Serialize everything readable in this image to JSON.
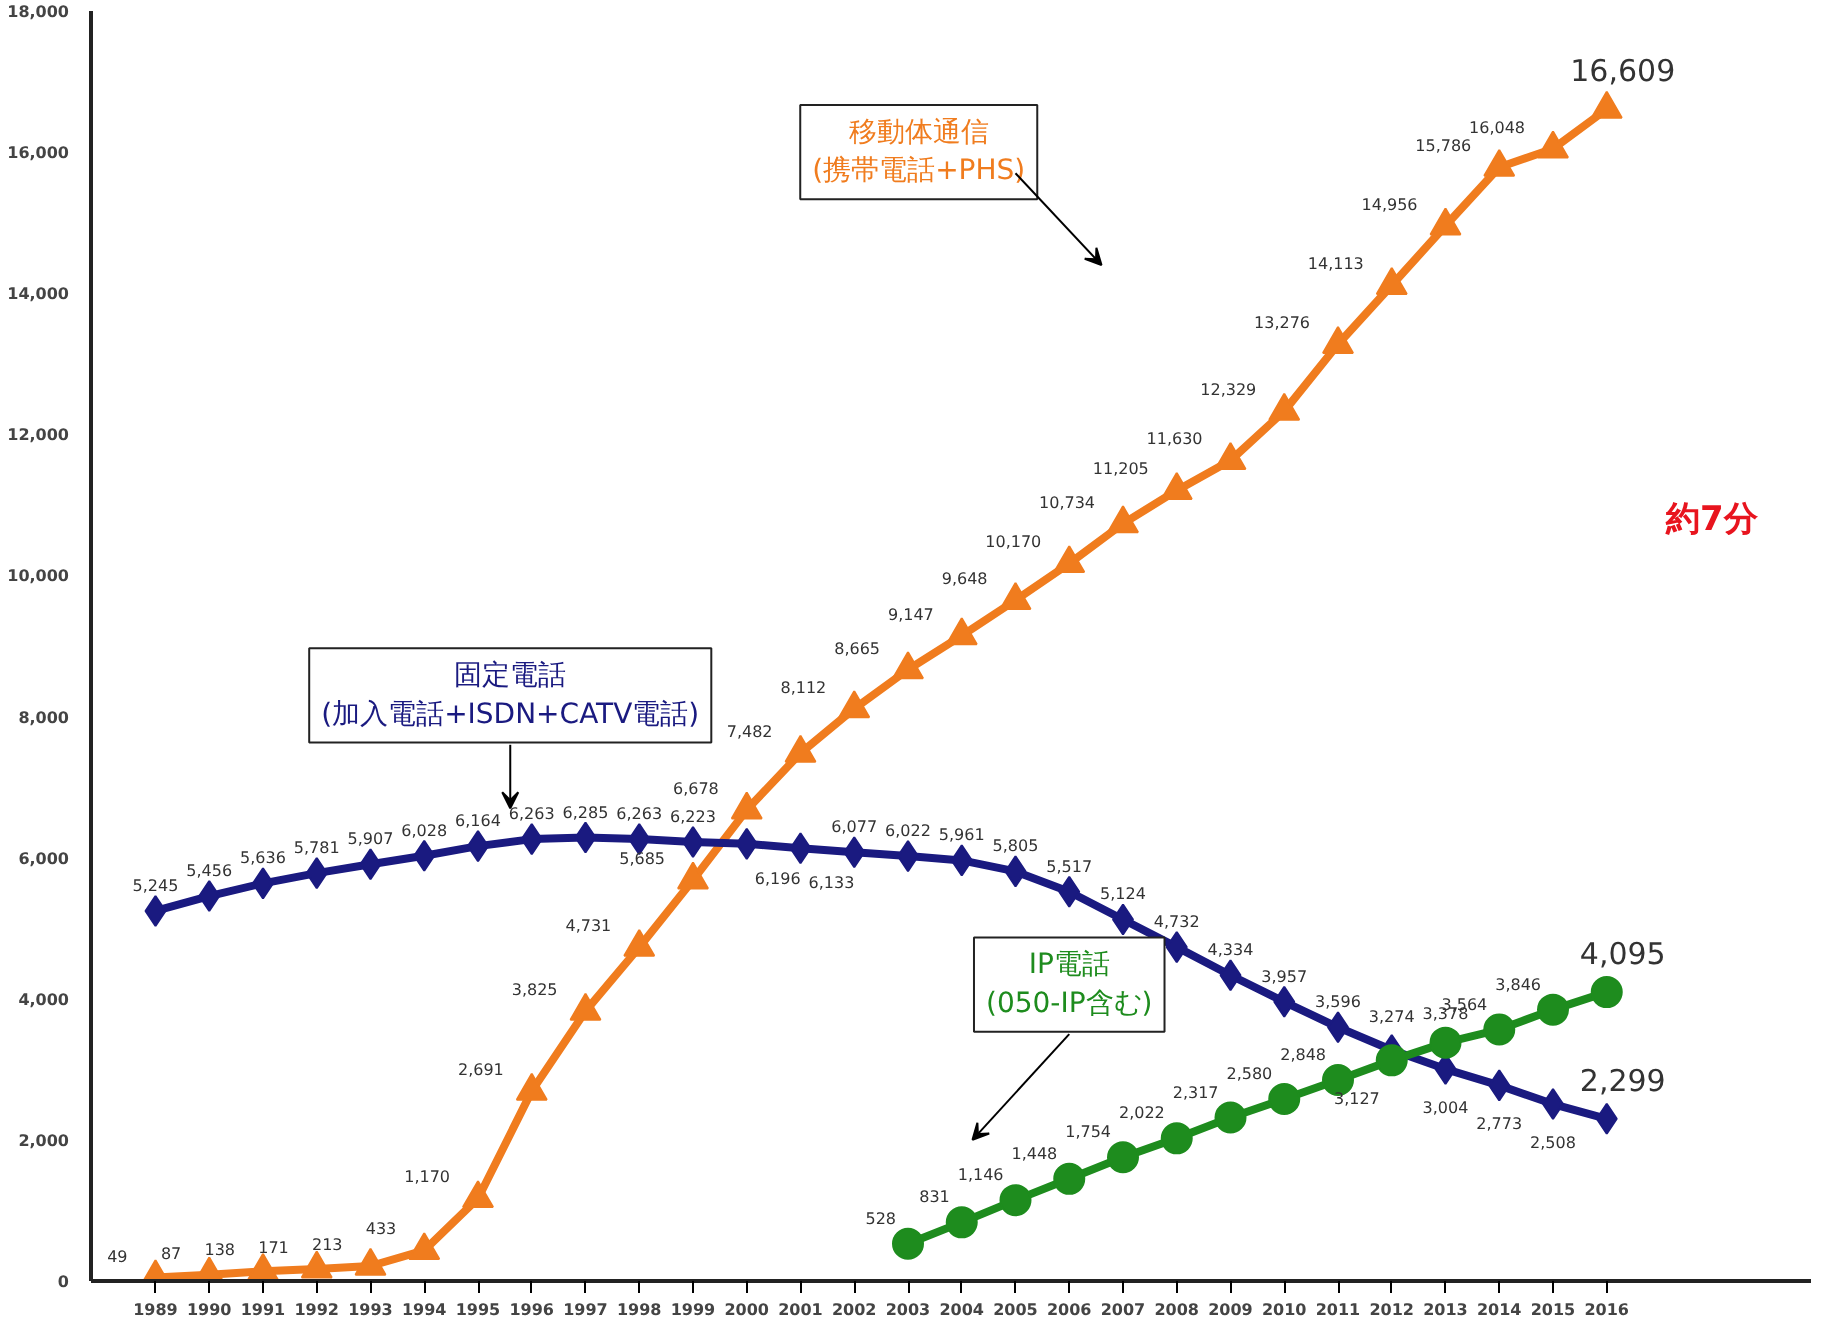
{
  "chart_data": {
    "type": "line",
    "categories": [
      "1989",
      "1990",
      "1991",
      "1992",
      "1993",
      "1994",
      "1995",
      "1996",
      "1997",
      "1998",
      "1999",
      "2000",
      "2001",
      "2002",
      "2003",
      "2004",
      "2005",
      "2006",
      "2007",
      "2008",
      "2009",
      "2010",
      "2011",
      "2012",
      "2013",
      "2014",
      "2015",
      "2016"
    ],
    "series": [
      {
        "name": "移動体通信\n(携帯電話+PHS)",
        "color": "#f07c1e",
        "marker": "triangle",
        "value_labels": [
          "49",
          "87",
          "138",
          "171",
          "213",
          "433",
          "1,170",
          "2,691",
          "3,825",
          "4,731",
          "5,685",
          "6,678",
          "7,482",
          "8,112",
          "8,665",
          "9,147",
          "9,648",
          "10,170",
          "10,734",
          "11,205",
          "11,630",
          "12,329",
          "13,276",
          "14,113",
          "14,956",
          "15,786",
          "16,048",
          "16,609"
        ],
        "values": [
          49,
          87,
          138,
          171,
          213,
          433,
          1170,
          2691,
          3825,
          4731,
          5685,
          6678,
          7482,
          8112,
          8665,
          9147,
          9648,
          10170,
          10734,
          11205,
          11630,
          12329,
          13276,
          14113,
          14956,
          15786,
          16048,
          16609
        ]
      },
      {
        "name": "固定電話\n(加入電話+ISDN+CATV電話)",
        "color": "#1a1a80",
        "marker": "diamond",
        "value_labels": [
          "5,245",
          "5,456",
          "5,636",
          "5,781",
          "5,907",
          "6,028",
          "6,164",
          "6,263",
          "6,285",
          "6,263",
          "6,223",
          "6,196",
          "6,133",
          "6,077",
          "6,022",
          "5,961",
          "5,805",
          "5,517",
          "5,124",
          "4,732",
          "4,334",
          "3,957",
          "3,596",
          "3,274",
          "3,004",
          "2,773",
          "2,508",
          "2,299"
        ],
        "values": [
          5245,
          5456,
          5636,
          5781,
          5907,
          6028,
          6164,
          6263,
          6285,
          6263,
          6223,
          6196,
          6133,
          6077,
          6022,
          5961,
          5805,
          5517,
          5124,
          4732,
          4334,
          3957,
          3596,
          3274,
          3004,
          2773,
          2508,
          2299
        ]
      },
      {
        "name": "IP電話\n(050-IP含む)",
        "color": "#1e8c1e",
        "marker": "circle",
        "value_labels": [
          null,
          null,
          null,
          null,
          null,
          null,
          null,
          null,
          null,
          null,
          null,
          null,
          null,
          null,
          "528",
          "831",
          "1,146",
          "1,448",
          "1,754",
          "2,022",
          "2,317",
          "2,580",
          "2,848",
          "3,127",
          "3,378",
          "3,564",
          "3,846",
          "4,095"
        ],
        "values": [
          null,
          null,
          null,
          null,
          null,
          null,
          null,
          null,
          null,
          null,
          null,
          null,
          null,
          null,
          528,
          831,
          1146,
          1448,
          1754,
          2022,
          2317,
          2580,
          2848,
          3127,
          3378,
          3564,
          3846,
          4095
        ]
      }
    ],
    "ylim": [
      0,
      18000
    ],
    "yticks": [
      0,
      {
        "value": 2000,
        "label": "2,000"
      },
      {
        "value": 4000,
        "label": "4,000"
      },
      {
        "value": 6000,
        "label": "6,000"
      },
      {
        "value": 8000,
        "label": "8,000"
      },
      {
        "value": 10000,
        "label": "10,000"
      },
      {
        "value": 12000,
        "label": "12,000"
      },
      {
        "value": 14000,
        "label": "14,000"
      },
      {
        "value": 16000,
        "label": "16,000"
      },
      {
        "value": 18000,
        "label": "18,000"
      }
    ],
    "grid": false,
    "line_style": "solid",
    "annotations": [
      "約7分"
    ]
  }
}
